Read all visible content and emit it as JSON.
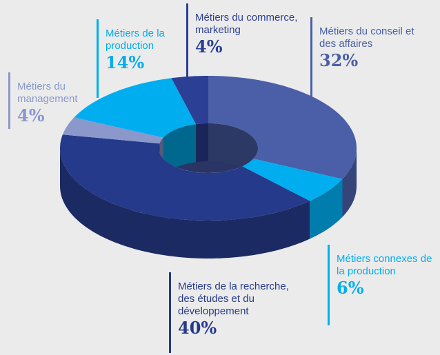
{
  "chart_data": {
    "type": "pie",
    "categories": [
      "Métiers du conseil et des affaires",
      "Métiers connexes de la production",
      "Métiers de la recherche, des études et du développement",
      "Métiers du management",
      "Métiers de la production",
      "Métiers du commerce, marketing"
    ],
    "values": [
      32,
      6,
      40,
      4,
      14,
      4
    ],
    "value_labels": [
      "32%",
      "6%",
      "40%",
      "4%",
      "14%",
      "4%"
    ],
    "colors": [
      "#4a5fa8",
      "#00aeef",
      "#253a8a",
      "#8a98cc",
      "#00aeef",
      "#2b3f94"
    ]
  }
}
